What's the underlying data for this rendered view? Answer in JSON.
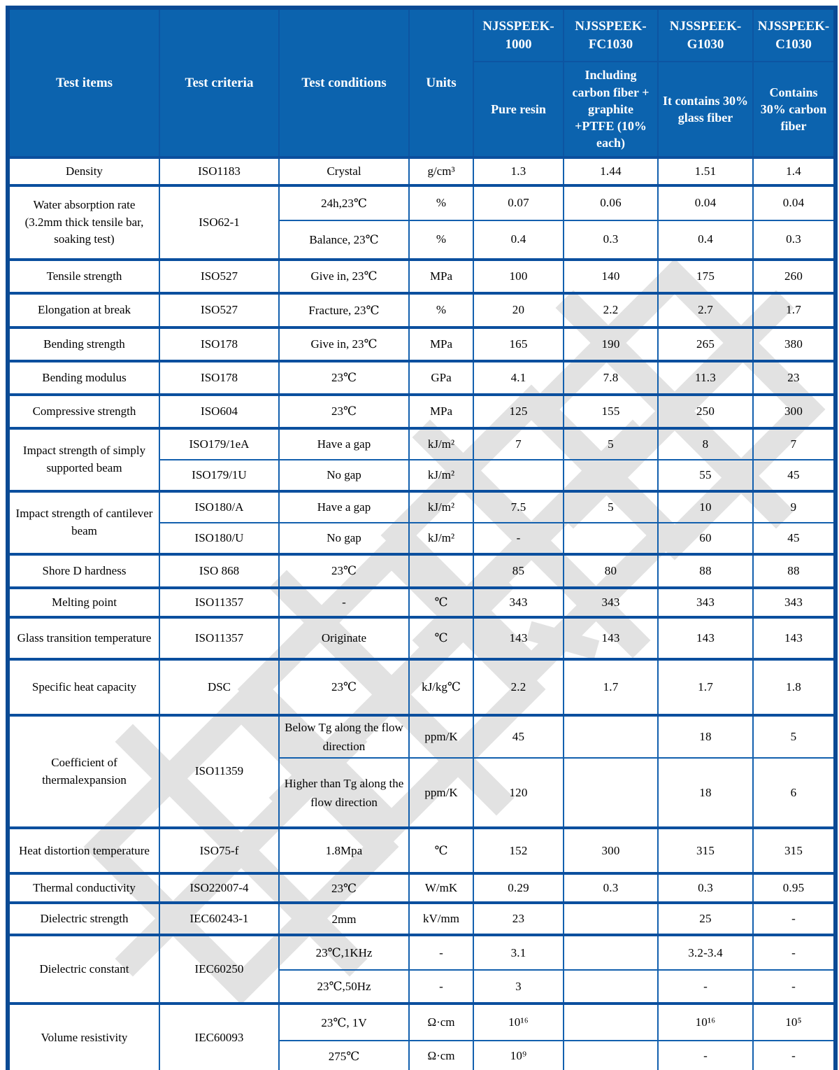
{
  "watermark": {
    "text": "南京首塑",
    "color": "#e2e2e2"
  },
  "theme": {
    "header_bg": "#0c63ae",
    "header_text": "#ffffff",
    "border": "#1360ae",
    "separator": "#0b4f9e",
    "outer_border": "#0a4a94"
  },
  "header": {
    "items": "Test items",
    "criteria": "Test criteria",
    "conditions": "Test conditions",
    "units": "Units",
    "products": [
      {
        "name": "NJSSPEEK-1000",
        "desc": "Pure resin"
      },
      {
        "name": "NJSSPEEK-FC1030",
        "desc": "Including carbon fiber + graphite +PTFE (10% each)"
      },
      {
        "name": "NJSSPEEK-G1030",
        "desc": "It contains 30% glass fiber"
      },
      {
        "name": "NJSSPEEK-C1030",
        "desc": "Contains 30% carbon fiber"
      }
    ]
  },
  "table": {
    "rows": [
      {
        "sep": true,
        "cells": [
          {
            "t": "Density",
            "k": "item"
          },
          {
            "t": "ISO1183",
            "k": "crit"
          },
          {
            "t": "Crystal",
            "k": "cond"
          },
          {
            "t": "g/cm³",
            "k": "unit"
          },
          {
            "t": "1.3",
            "k": "val"
          },
          {
            "t": "1.44",
            "k": "val"
          },
          {
            "t": "1.51",
            "k": "val"
          },
          {
            "t": "1.4",
            "k": "val"
          }
        ]
      },
      {
        "sep": true,
        "cells": [
          {
            "t": "Water absorption rate (3.2mm thick tensile bar, soaking test)",
            "k": "item",
            "rs": 2
          },
          {
            "t": "ISO62-1",
            "k": "crit",
            "rs": 2
          },
          {
            "t": "24h,23℃",
            "k": "cond"
          },
          {
            "t": "%",
            "k": "unit"
          },
          {
            "t": "0.07",
            "k": "val"
          },
          {
            "t": "0.06",
            "k": "val"
          },
          {
            "t": "0.04",
            "k": "val"
          },
          {
            "t": "0.04",
            "k": "val"
          }
        ]
      },
      {
        "sep": false,
        "cells": [
          {
            "t": "Balance, 23℃",
            "k": "cond"
          },
          {
            "t": "%",
            "k": "unit"
          },
          {
            "t": "0.4",
            "k": "val"
          },
          {
            "t": "0.3",
            "k": "val"
          },
          {
            "t": "0.4",
            "k": "val"
          },
          {
            "t": "0.3",
            "k": "val"
          }
        ]
      },
      {
        "sep": true,
        "cells": [
          {
            "t": "Tensile strength",
            "k": "item"
          },
          {
            "t": "ISO527",
            "k": "crit"
          },
          {
            "t": "Give in, 23℃",
            "k": "cond"
          },
          {
            "t": "MPa",
            "k": "unit"
          },
          {
            "t": "100",
            "k": "val"
          },
          {
            "t": "140",
            "k": "val"
          },
          {
            "t": "175",
            "k": "val"
          },
          {
            "t": "260",
            "k": "val"
          }
        ]
      },
      {
        "sep": true,
        "cells": [
          {
            "t": "Elongation at break",
            "k": "item"
          },
          {
            "t": "ISO527",
            "k": "crit"
          },
          {
            "t": "Fracture, 23℃",
            "k": "cond"
          },
          {
            "t": "%",
            "k": "unit"
          },
          {
            "t": "20",
            "k": "val"
          },
          {
            "t": "2.2",
            "k": "val"
          },
          {
            "t": "2.7",
            "k": "val"
          },
          {
            "t": "1.7",
            "k": "val"
          }
        ]
      },
      {
        "sep": true,
        "cells": [
          {
            "t": "Bending strength",
            "k": "item"
          },
          {
            "t": "ISO178",
            "k": "crit"
          },
          {
            "t": "Give in, 23℃",
            "k": "cond"
          },
          {
            "t": "MPa",
            "k": "unit"
          },
          {
            "t": "165",
            "k": "val"
          },
          {
            "t": "190",
            "k": "val"
          },
          {
            "t": "265",
            "k": "val"
          },
          {
            "t": "380",
            "k": "val"
          }
        ]
      },
      {
        "sep": true,
        "cells": [
          {
            "t": "Bending modulus",
            "k": "item"
          },
          {
            "t": "ISO178",
            "k": "crit"
          },
          {
            "t": "23℃",
            "k": "cond"
          },
          {
            "t": "GPa",
            "k": "unit"
          },
          {
            "t": "4.1",
            "k": "val"
          },
          {
            "t": "7.8",
            "k": "val"
          },
          {
            "t": "11.3",
            "k": "val"
          },
          {
            "t": "23",
            "k": "val"
          }
        ]
      },
      {
        "sep": true,
        "cells": [
          {
            "t": "Compressive strength",
            "k": "item"
          },
          {
            "t": "ISO604",
            "k": "crit"
          },
          {
            "t": "23℃",
            "k": "cond"
          },
          {
            "t": "MPa",
            "k": "unit"
          },
          {
            "t": "125",
            "k": "val"
          },
          {
            "t": "155",
            "k": "val"
          },
          {
            "t": "250",
            "k": "val"
          },
          {
            "t": "300",
            "k": "val"
          }
        ]
      },
      {
        "sep": true,
        "cells": [
          {
            "t": "Impact strength of simply supported beam",
            "k": "item",
            "rs": 2
          },
          {
            "t": "ISO179/1eA",
            "k": "crit"
          },
          {
            "t": "Have a gap",
            "k": "cond"
          },
          {
            "t": "kJ/m²",
            "k": "unit"
          },
          {
            "t": "7",
            "k": "val"
          },
          {
            "t": "5",
            "k": "val"
          },
          {
            "t": "8",
            "k": "val"
          },
          {
            "t": "7",
            "k": "val"
          }
        ]
      },
      {
        "sep": false,
        "cells": [
          {
            "t": "ISO179/1U",
            "k": "crit"
          },
          {
            "t": "No gap",
            "k": "cond"
          },
          {
            "t": "kJ/m²",
            "k": "unit"
          },
          {
            "t": "",
            "k": "val"
          },
          {
            "t": "",
            "k": "val"
          },
          {
            "t": "55",
            "k": "val"
          },
          {
            "t": "45",
            "k": "val"
          }
        ]
      },
      {
        "sep": true,
        "cells": [
          {
            "t": "Impact strength of cantilever beam",
            "k": "item",
            "rs": 2
          },
          {
            "t": "ISO180/A",
            "k": "crit"
          },
          {
            "t": "Have a gap",
            "k": "cond"
          },
          {
            "t": "kJ/m²",
            "k": "unit"
          },
          {
            "t": "7.5",
            "k": "val"
          },
          {
            "t": "5",
            "k": "val"
          },
          {
            "t": "10",
            "k": "val"
          },
          {
            "t": "9",
            "k": "val"
          }
        ]
      },
      {
        "sep": false,
        "cells": [
          {
            "t": "ISO180/U",
            "k": "crit"
          },
          {
            "t": "No gap",
            "k": "cond"
          },
          {
            "t": "kJ/m²",
            "k": "unit"
          },
          {
            "t": "-",
            "k": "val"
          },
          {
            "t": "",
            "k": "val"
          },
          {
            "t": "60",
            "k": "val"
          },
          {
            "t": "45",
            "k": "val"
          }
        ]
      },
      {
        "sep": true,
        "cells": [
          {
            "t": "Shore D hardness",
            "k": "item"
          },
          {
            "t": "ISO 868",
            "k": "crit"
          },
          {
            "t": "23℃",
            "k": "cond"
          },
          {
            "t": "",
            "k": "unit"
          },
          {
            "t": "85",
            "k": "val"
          },
          {
            "t": "80",
            "k": "val"
          },
          {
            "t": "88",
            "k": "val"
          },
          {
            "t": "88",
            "k": "val"
          }
        ]
      },
      {
        "sep": true,
        "cells": [
          {
            "t": "Melting point",
            "k": "item"
          },
          {
            "t": "ISO11357",
            "k": "crit"
          },
          {
            "t": "-",
            "k": "cond"
          },
          {
            "t": "℃",
            "k": "unit"
          },
          {
            "t": "343",
            "k": "val"
          },
          {
            "t": "343",
            "k": "val"
          },
          {
            "t": "343",
            "k": "val"
          },
          {
            "t": "343",
            "k": "val"
          }
        ]
      },
      {
        "sep": true,
        "cells": [
          {
            "t": "Glass transition temperature",
            "k": "item"
          },
          {
            "t": "ISO11357",
            "k": "crit"
          },
          {
            "t": "Originate",
            "k": "cond"
          },
          {
            "t": "℃",
            "k": "unit"
          },
          {
            "t": "143",
            "k": "val"
          },
          {
            "t": "143",
            "k": "val"
          },
          {
            "t": "143",
            "k": "val"
          },
          {
            "t": "143",
            "k": "val"
          }
        ]
      },
      {
        "sep": true,
        "cells": [
          {
            "t": "Specific heat capacity",
            "k": "item"
          },
          {
            "t": "DSC",
            "k": "crit"
          },
          {
            "t": "23℃",
            "k": "cond"
          },
          {
            "t": "kJ/kg℃",
            "k": "unit"
          },
          {
            "t": "2.2",
            "k": "val"
          },
          {
            "t": "1.7",
            "k": "val"
          },
          {
            "t": "1.7",
            "k": "val"
          },
          {
            "t": "1.8",
            "k": "val"
          }
        ]
      },
      {
        "sep": true,
        "cells": [
          {
            "t": "Coefficient of thermalexpansion",
            "k": "item",
            "rs": 2
          },
          {
            "t": "ISO11359",
            "k": "crit",
            "rs": 2
          },
          {
            "t": "Below Tg along the flow direction",
            "k": "cond"
          },
          {
            "t": "ppm/K",
            "k": "unit"
          },
          {
            "t": "45",
            "k": "val"
          },
          {
            "t": "",
            "k": "val"
          },
          {
            "t": "18",
            "k": "val"
          },
          {
            "t": "5",
            "k": "val"
          }
        ]
      },
      {
        "sep": false,
        "cells": [
          {
            "t": "Higher than Tg along the flow direction",
            "k": "cond"
          },
          {
            "t": "ppm/K",
            "k": "unit"
          },
          {
            "t": "120",
            "k": "val"
          },
          {
            "t": "",
            "k": "val"
          },
          {
            "t": "18",
            "k": "val"
          },
          {
            "t": "6",
            "k": "val"
          }
        ]
      },
      {
        "sep": true,
        "cells": [
          {
            "t": "Heat distortion temperature",
            "k": "item"
          },
          {
            "t": "ISO75-f",
            "k": "crit"
          },
          {
            "t": "1.8Mpa",
            "k": "cond"
          },
          {
            "t": "℃",
            "k": "unit"
          },
          {
            "t": "152",
            "k": "val"
          },
          {
            "t": "300",
            "k": "val"
          },
          {
            "t": "315",
            "k": "val"
          },
          {
            "t": "315",
            "k": "val"
          }
        ]
      },
      {
        "sep": true,
        "cells": [
          {
            "t": "Thermal conductivity",
            "k": "item"
          },
          {
            "t": "ISO22007-4",
            "k": "crit"
          },
          {
            "t": "23℃",
            "k": "cond"
          },
          {
            "t": "W/mK",
            "k": "unit"
          },
          {
            "t": "0.29",
            "k": "val"
          },
          {
            "t": "0.3",
            "k": "val"
          },
          {
            "t": "0.3",
            "k": "val"
          },
          {
            "t": "0.95",
            "k": "val"
          }
        ]
      },
      {
        "sep": true,
        "cells": [
          {
            "t": "Dielectric strength",
            "k": "item"
          },
          {
            "t": "IEC60243-1",
            "k": "crit"
          },
          {
            "t": "2mm",
            "k": "cond"
          },
          {
            "t": "kV/mm",
            "k": "unit"
          },
          {
            "t": "23",
            "k": "val"
          },
          {
            "t": "",
            "k": "val"
          },
          {
            "t": "25",
            "k": "val"
          },
          {
            "t": "-",
            "k": "val"
          }
        ]
      },
      {
        "sep": true,
        "cells": [
          {
            "t": "Dielectric constant",
            "k": "item",
            "rs": 2
          },
          {
            "t": "IEC60250",
            "k": "crit",
            "rs": 2
          },
          {
            "t": "23℃,1KHz",
            "k": "cond"
          },
          {
            "t": "-",
            "k": "unit"
          },
          {
            "t": "3.1",
            "k": "val"
          },
          {
            "t": "",
            "k": "val"
          },
          {
            "t": "3.2-3.4",
            "k": "val"
          },
          {
            "t": "-",
            "k": "val"
          }
        ]
      },
      {
        "sep": false,
        "cells": [
          {
            "t": "23℃,50Hz",
            "k": "cond"
          },
          {
            "t": "-",
            "k": "unit"
          },
          {
            "t": "3",
            "k": "val"
          },
          {
            "t": "",
            "k": "val"
          },
          {
            "t": "-",
            "k": "val"
          },
          {
            "t": "-",
            "k": "val"
          }
        ]
      },
      {
        "sep": true,
        "cells": [
          {
            "t": "Volume resistivity",
            "k": "item",
            "rs": 2
          },
          {
            "t": "IEC60093",
            "k": "crit",
            "rs": 2
          },
          {
            "t": "23℃, 1V",
            "k": "cond"
          },
          {
            "t": "Ω·cm",
            "k": "unit"
          },
          {
            "t": "10¹⁶",
            "k": "val"
          },
          {
            "t": "",
            "k": "val"
          },
          {
            "t": "10¹⁶",
            "k": "val"
          },
          {
            "t": "10⁵",
            "k": "val"
          }
        ]
      },
      {
        "sep": false,
        "cells": [
          {
            "t": "275℃",
            "k": "cond"
          },
          {
            "t": "Ω·cm",
            "k": "unit"
          },
          {
            "t": "10⁹",
            "k": "val"
          },
          {
            "t": "",
            "k": "val"
          },
          {
            "t": "-",
            "k": "val"
          },
          {
            "t": "-",
            "k": "val"
          }
        ]
      }
    ]
  }
}
